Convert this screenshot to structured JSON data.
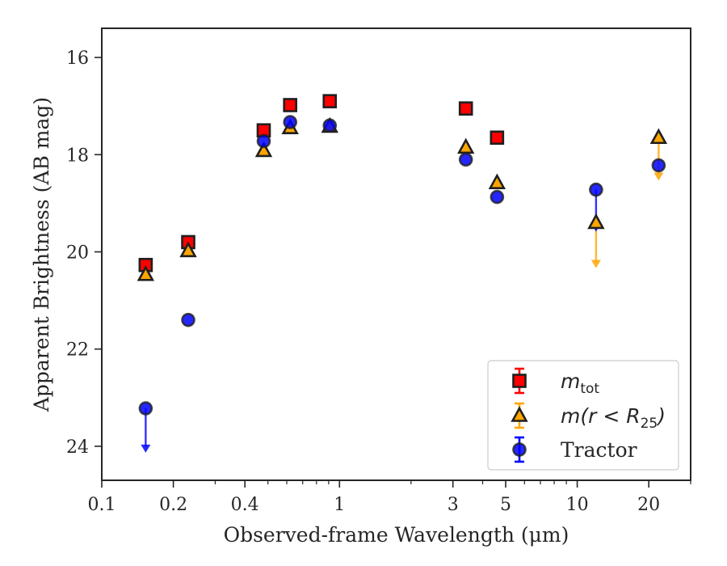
{
  "chart_data": {
    "type": "scatter",
    "xlabel": "Observed-frame Wavelength (μm)",
    "ylabel": "Apparent Brightness (AB mag)",
    "xscale": "log",
    "xlim": [
      0.1,
      30
    ],
    "ylim": [
      24.7,
      15.4
    ],
    "y_inverted": true,
    "x_ticks": [
      0.1,
      0.2,
      0.4,
      1,
      3,
      5,
      10,
      20
    ],
    "x_tick_labels": [
      "0.1",
      "0.2",
      "0.4",
      "1",
      "3",
      "5",
      "10",
      "20"
    ],
    "y_ticks": [
      16,
      18,
      20,
      22,
      24
    ],
    "y_tick_labels": [
      "16",
      "18",
      "20",
      "22",
      "24"
    ],
    "grid": false,
    "legend_position": "bottom-right",
    "series": [
      {
        "name": "m_tot",
        "legend_main": "m",
        "legend_sub": "tot",
        "marker": "square",
        "color": "#ff0000",
        "points": [
          {
            "x": 0.153,
            "y": 20.27
          },
          {
            "x": 0.231,
            "y": 19.8
          },
          {
            "x": 0.48,
            "y": 17.5
          },
          {
            "x": 0.62,
            "y": 16.98
          },
          {
            "x": 0.91,
            "y": 16.9
          },
          {
            "x": 3.4,
            "y": 17.05
          },
          {
            "x": 4.6,
            "y": 17.65
          }
        ]
      },
      {
        "name": "m(r<R25)",
        "legend_main": "m(r < R",
        "legend_sub": "25",
        "legend_tail": ")",
        "marker": "triangle",
        "color": "#ffa500",
        "points": [
          {
            "x": 0.153,
            "y": 20.47
          },
          {
            "x": 0.231,
            "y": 19.98
          },
          {
            "x": 0.48,
            "y": 17.92
          },
          {
            "x": 0.62,
            "y": 17.45
          },
          {
            "x": 0.91,
            "y": 17.42
          },
          {
            "x": 3.4,
            "y": 17.85
          },
          {
            "x": 4.6,
            "y": 18.58
          },
          {
            "x": 12.0,
            "y": 19.4,
            "upper_limit_to": 20.3
          },
          {
            "x": 22.0,
            "y": 17.65,
            "upper_limit_to": 18.5
          }
        ]
      },
      {
        "name": "Tractor",
        "legend_main": "Tractor",
        "marker": "circle",
        "color": "#0000ff",
        "points": [
          {
            "x": 0.153,
            "y": 23.22,
            "upper_limit_to": 24.1
          },
          {
            "x": 0.231,
            "y": 21.4
          },
          {
            "x": 0.48,
            "y": 17.72
          },
          {
            "x": 0.62,
            "y": 17.33
          },
          {
            "x": 0.91,
            "y": 17.4
          },
          {
            "x": 3.4,
            "y": 18.1
          },
          {
            "x": 4.6,
            "y": 18.87
          },
          {
            "x": 12.0,
            "y": 18.72,
            "upper_limit_to": 19.55
          },
          {
            "x": 22.0,
            "y": 18.22
          }
        ]
      }
    ]
  }
}
